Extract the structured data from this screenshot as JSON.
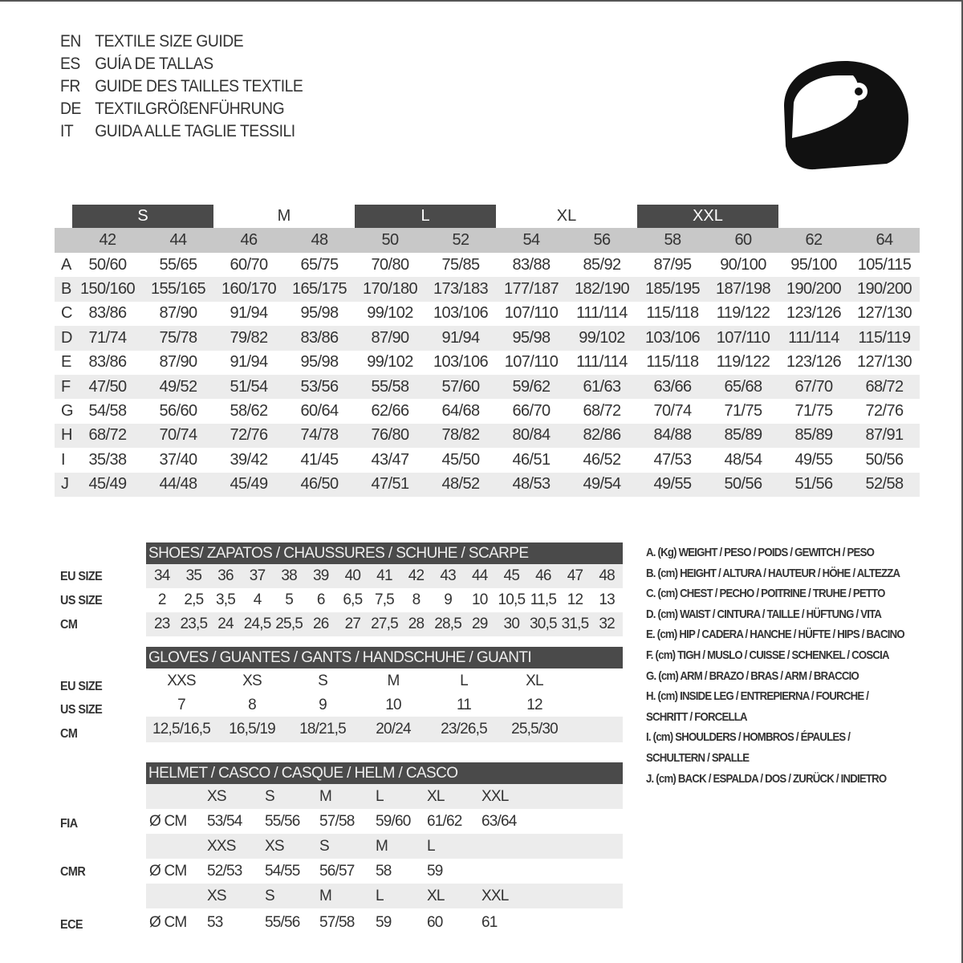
{
  "titles": [
    {
      "code": "EN",
      "text": "TEXTILE SIZE GUIDE"
    },
    {
      "code": "ES",
      "text": "GUÍA DE TALLAS"
    },
    {
      "code": "FR",
      "text": "GUIDE DES TAILLES TEXTILE"
    },
    {
      "code": "DE",
      "text": "TEXTILGRÖßENFÜHRUNG"
    },
    {
      "code": "IT",
      "text": "GUIDA ALLE TAGLIE TESSILI"
    }
  ],
  "logo_icon": "helmet-icon",
  "colors": {
    "dark": "#4a4a4a",
    "header_gray": "#c8c8c8",
    "stripe": "#ececec"
  },
  "textile": {
    "bands": [
      {
        "label": "S",
        "dark": true
      },
      {
        "label": "M",
        "dark": false
      },
      {
        "label": "L",
        "dark": true
      },
      {
        "label": "XL",
        "dark": false
      },
      {
        "label": "XXL",
        "dark": true
      }
    ],
    "sizes": [
      "42",
      "44",
      "46",
      "48",
      "50",
      "52",
      "54",
      "56",
      "58",
      "60",
      "62",
      "64"
    ],
    "rows": [
      {
        "label": "A",
        "values": [
          "50/60",
          "55/65",
          "60/70",
          "65/75",
          "70/80",
          "75/85",
          "83/88",
          "85/92",
          "87/95",
          "90/100",
          "95/100",
          "105/115"
        ]
      },
      {
        "label": "B",
        "values": [
          "150/160",
          "155/165",
          "160/170",
          "165/175",
          "170/180",
          "173/183",
          "177/187",
          "182/190",
          "185/195",
          "187/198",
          "190/200",
          "190/200"
        ]
      },
      {
        "label": "C",
        "values": [
          "83/86",
          "87/90",
          "91/94",
          "95/98",
          "99/102",
          "103/106",
          "107/110",
          "111/114",
          "115/118",
          "119/122",
          "123/126",
          "127/130"
        ]
      },
      {
        "label": "D",
        "values": [
          "71/74",
          "75/78",
          "79/82",
          "83/86",
          "87/90",
          "91/94",
          "95/98",
          "99/102",
          "103/106",
          "107/110",
          "111/114",
          "115/119"
        ]
      },
      {
        "label": "E",
        "values": [
          "83/86",
          "87/90",
          "91/94",
          "95/98",
          "99/102",
          "103/106",
          "107/110",
          "111/114",
          "115/118",
          "119/122",
          "123/126",
          "127/130"
        ]
      },
      {
        "label": "F",
        "values": [
          "47/50",
          "49/52",
          "51/54",
          "53/56",
          "55/58",
          "57/60",
          "59/62",
          "61/63",
          "63/66",
          "65/68",
          "67/70",
          "68/72"
        ]
      },
      {
        "label": "G",
        "values": [
          "54/58",
          "56/60",
          "58/62",
          "60/64",
          "62/66",
          "64/68",
          "66/70",
          "68/72",
          "70/74",
          "71/75",
          "71/75",
          "72/76"
        ]
      },
      {
        "label": "H",
        "values": [
          "68/72",
          "70/74",
          "72/76",
          "74/78",
          "76/80",
          "78/82",
          "80/84",
          "82/86",
          "84/88",
          "85/89",
          "85/89",
          "87/91"
        ]
      },
      {
        "label": "I",
        "values": [
          "35/38",
          "37/40",
          "39/42",
          "41/45",
          "43/47",
          "45/50",
          "46/51",
          "46/52",
          "47/53",
          "48/54",
          "49/55",
          "50/56"
        ]
      },
      {
        "label": "J",
        "values": [
          "45/49",
          "44/48",
          "45/49",
          "46/50",
          "47/51",
          "48/52",
          "48/53",
          "49/54",
          "49/55",
          "50/56",
          "51/56",
          "52/58"
        ]
      }
    ]
  },
  "shoes": {
    "title": "SHOES/ ZAPATOS / CHAUSSURES / SCHUHE / SCARPE",
    "labels": [
      "EU SIZE",
      "US SIZE",
      "CM"
    ],
    "rows": [
      [
        "34",
        "35",
        "36",
        "37",
        "38",
        "39",
        "40",
        "41",
        "42",
        "43",
        "44",
        "45",
        "46",
        "47",
        "48"
      ],
      [
        "2",
        "2,5",
        "3,5",
        "4",
        "5",
        "6",
        "6,5",
        "7,5",
        "8",
        "9",
        "10",
        "10,5",
        "11,5",
        "12",
        "13"
      ],
      [
        "23",
        "23,5",
        "24",
        "24,5",
        "25,5",
        "26",
        "27",
        "27,5",
        "28",
        "28,5",
        "29",
        "30",
        "30,5",
        "31,5",
        "32"
      ]
    ]
  },
  "gloves": {
    "title": "GLOVES / GUANTES / GANTS / HANDSCHUHE / GUANTI",
    "labels": [
      "EU SIZE",
      "US SIZE",
      "CM"
    ],
    "rows": [
      [
        "XXS",
        "XS",
        "S",
        "M",
        "L",
        "XL"
      ],
      [
        "7",
        "8",
        "9",
        "10",
        "11",
        "12"
      ],
      [
        "12,5/16,5",
        "16,5/19",
        "18/21,5",
        "20/24",
        "23/26,5",
        "25,5/30"
      ]
    ]
  },
  "helmet": {
    "title": "HELMET / CASCO / CASQUE / HELM / CASCO",
    "labels": [
      "FIA",
      "CMR",
      "ECE"
    ],
    "rows": [
      [
        "",
        "XS",
        "S",
        "M",
        "L",
        "XL",
        "XXL"
      ],
      [
        "Ø CM",
        "53/54",
        "55/56",
        "57/58",
        "59/60",
        "61/62",
        "63/64"
      ],
      [
        "",
        "XXS",
        "XS",
        "S",
        "M",
        "L",
        ""
      ],
      [
        "Ø CM",
        "52/53",
        "54/55",
        "56/57",
        "58",
        "59",
        ""
      ],
      [
        "",
        "XS",
        "S",
        "M",
        "L",
        "XL",
        "XXL"
      ],
      [
        "Ø CM",
        "53",
        "55/56",
        "57/58",
        "59",
        "60",
        "61"
      ]
    ]
  },
  "legend": [
    "A. (Kg) WEIGHT / PESO / POIDS / GEWITCH / PESO",
    "B. (cm) HEIGHT / ALTURA / HAUTEUR / HÖHE / ALTEZZA",
    "C. (cm) CHEST / PECHO / POITRINE / TRUHE / PETTO",
    "D. (cm) WAIST / CINTURA / TAILLE / HÜFTUNG / VITA",
    "E. (cm) HIP / CADERA / HANCHE / HÜFTE / HIPS /  BACINO",
    "F.  (cm) TIGH / MUSLO / CUISSE / SCHENKEL / COSCIA",
    "G. (cm) ARM  / BRAZO / BRAS / ARM / BRACCIO",
    "H. (cm) INSIDE LEG / ENTREPIERNA / FOURCHE /",
    "SCHRITT / FORCELLA",
    "I.  (cm) SHOULDERS / HOMBROS / ÉPAULES /",
    "SCHULTERN / SPALLE",
    "J. (cm) BACK / ESPALDA / DOS / ZURÜCK / INDIETRO"
  ]
}
